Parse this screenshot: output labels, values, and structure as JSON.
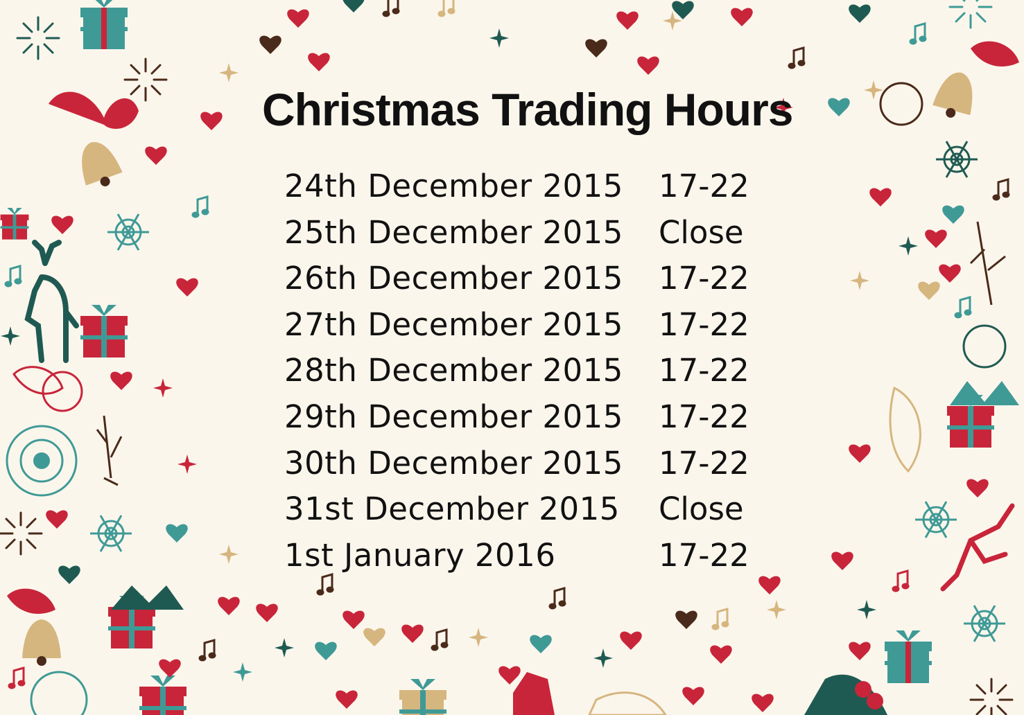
{
  "page": {
    "title": "Christmas Trading Hours",
    "schedule": [
      {
        "date": "24th December 2015",
        "hours": "17-22"
      },
      {
        "date": "25th December 2015",
        "hours": "Close"
      },
      {
        "date": "26th December 2015",
        "hours": "17-22"
      },
      {
        "date": "27th December 2015",
        "hours": "17-22"
      },
      {
        "date": "28th December 2015",
        "hours": "17-22"
      },
      {
        "date": "29th December 2015",
        "hours": "17-22"
      },
      {
        "date": "30th December 2015",
        "hours": "17-22"
      },
      {
        "date": "31st December 2015",
        "hours": "Close"
      },
      {
        "date": "1st January 2016",
        "hours": "17-22"
      }
    ]
  },
  "colors": {
    "background": "#fbf6ec",
    "red": "#c8253a",
    "teal": "#3f9a96",
    "dark_green": "#1f5a52",
    "gold": "#d6b67f",
    "brown": "#4a2a1a",
    "text": "#111111"
  },
  "decorations": [
    "bell-icon",
    "gift-box-icon",
    "heart-icon",
    "snowflake-icon",
    "reindeer-icon",
    "music-note-icon",
    "sparkle-icon",
    "holly-icon",
    "mandala-icon"
  ]
}
